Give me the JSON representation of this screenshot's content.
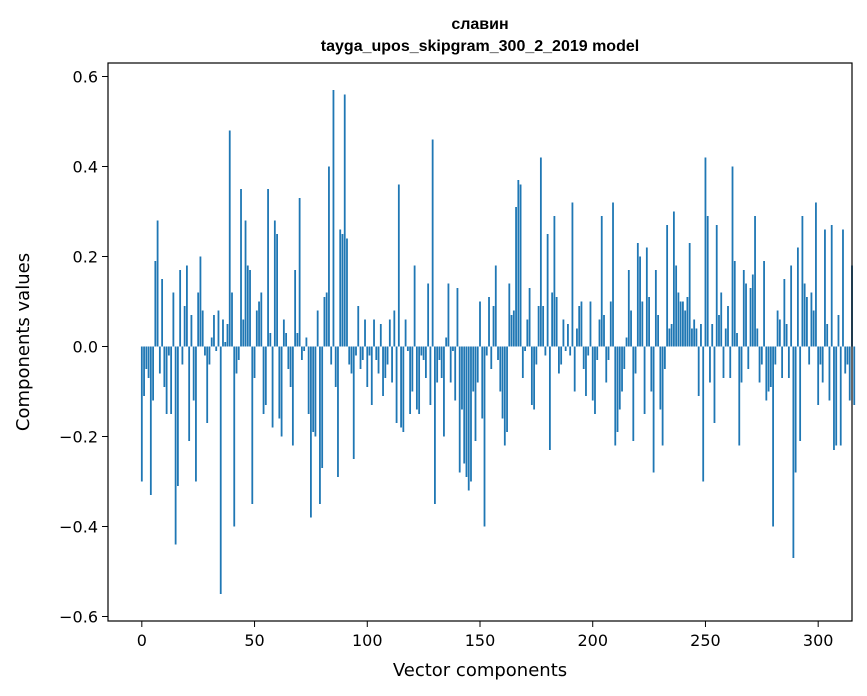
{
  "chart_data": {
    "type": "bar",
    "title": "славин",
    "subtitle": "tayga_upos_skipgram_300_2_2019 model",
    "xlabel": "Vector components",
    "ylabel": "Components values",
    "xlim": [
      -15,
      315
    ],
    "ylim": [
      -0.61,
      0.63
    ],
    "xticks": [
      0,
      50,
      100,
      150,
      200,
      250,
      300
    ],
    "yticks": [
      -0.6,
      -0.4,
      -0.2,
      0.0,
      0.2,
      0.4,
      0.6
    ],
    "ytick_labels": [
      "−0.6",
      "−0.4",
      "−0.2",
      "0.0",
      "0.2",
      "0.4",
      "0.6"
    ],
    "grid": false,
    "bar_color": "#1f77b4",
    "series": [
      {
        "values": [
          -0.3,
          -0.11,
          -0.05,
          -0.07,
          -0.33,
          -0.12,
          0.19,
          0.28,
          -0.06,
          0.15,
          -0.09,
          -0.15,
          -0.02,
          -0.15,
          0.12,
          -0.44,
          -0.31,
          0.17,
          -0.04,
          0.09,
          0.18,
          -0.21,
          0.07,
          -0.12,
          -0.3,
          0.12,
          0.2,
          0.08,
          -0.02,
          -0.17,
          -0.04,
          0.02,
          0.07,
          -0.01,
          0.08,
          -0.55,
          0.06,
          0.01,
          0.05,
          0.48,
          0.12,
          -0.4,
          -0.06,
          -0.03,
          0.35,
          0.06,
          0.28,
          0.18,
          0.17,
          -0.35,
          -0.07,
          0.08,
          0.1,
          0.12,
          -0.15,
          -0.13,
          0.35,
          0.03,
          -0.18,
          0.28,
          0.25,
          -0.16,
          -0.2,
          0.06,
          0.03,
          -0.05,
          -0.09,
          -0.22,
          0.17,
          0.03,
          0.33,
          -0.03,
          -0.01,
          0.02,
          -0.15,
          -0.38,
          -0.19,
          -0.2,
          0.08,
          -0.35,
          -0.27,
          0.11,
          0.12,
          0.4,
          -0.04,
          0.57,
          -0.09,
          -0.29,
          0.26,
          0.25,
          0.56,
          0.24,
          -0.04,
          -0.06,
          -0.25,
          -0.02,
          0.09,
          -0.05,
          -0.03,
          0.06,
          -0.09,
          -0.02,
          -0.13,
          0.06,
          -0.03,
          -0.06,
          0.05,
          -0.11,
          -0.07,
          -0.04,
          0.06,
          -0.08,
          0.08,
          -0.17,
          0.36,
          -0.18,
          -0.19,
          0.06,
          -0.01,
          -0.15,
          -0.1,
          0.18,
          -0.14,
          -0.15,
          -0.02,
          -0.03,
          -0.07,
          0.14,
          -0.13,
          0.46,
          -0.35,
          -0.08,
          -0.03,
          -0.07,
          -0.2,
          0.02,
          0.14,
          -0.08,
          -0.01,
          -0.12,
          0.13,
          -0.28,
          -0.14,
          -0.26,
          -0.29,
          -0.32,
          -0.3,
          -0.1,
          -0.21,
          -0.08,
          0.1,
          -0.16,
          -0.4,
          -0.02,
          0.11,
          -0.05,
          0.09,
          0.18,
          -0.03,
          -0.1,
          -0.16,
          -0.22,
          -0.19,
          0.14,
          0.07,
          0.08,
          0.31,
          0.37,
          0.36,
          -0.07,
          -0.01,
          0.06,
          0.13,
          -0.13,
          -0.14,
          -0.04,
          0.09,
          0.42,
          0.09,
          -0.02,
          0.25,
          -0.23,
          0.12,
          0.29,
          0.11,
          -0.06,
          -0.04,
          0.06,
          -0.01,
          0.05,
          -0.02,
          0.32,
          -0.1,
          0.04,
          0.09,
          0.1,
          -0.05,
          -0.11,
          -0.02,
          0.1,
          -0.12,
          -0.15,
          -0.03,
          0.06,
          0.29,
          0.07,
          -0.08,
          -0.03,
          0.1,
          0.32,
          -0.22,
          -0.19,
          -0.14,
          -0.1,
          -0.05,
          0.02,
          0.17,
          0.08,
          -0.21,
          -0.06,
          0.23,
          0.2,
          0.1,
          -0.15,
          0.22,
          0.11,
          -0.1,
          -0.28,
          0.17,
          0.07,
          -0.14,
          -0.22,
          -0.05,
          0.27,
          0.04,
          0.05,
          0.3,
          0.18,
          0.12,
          0.1,
          0.1,
          0.08,
          0.11,
          0.23,
          0.04,
          0.06,
          0.04,
          -0.11,
          0.05,
          -0.3,
          0.42,
          0.29,
          -0.08,
          0.05,
          -0.17,
          0.27,
          0.07,
          0.12,
          -0.07,
          0.04,
          0.09,
          -0.07,
          0.4,
          0.19,
          0.03,
          -0.22,
          -0.08,
          0.17,
          0.14,
          -0.05,
          0.13,
          0.16,
          0.29,
          0.04,
          -0.08,
          -0.04,
          0.19,
          -0.12,
          -0.1,
          -0.09,
          -0.4,
          -0.04,
          0.08,
          0.06,
          -0.07,
          0.15,
          0.05,
          -0.07,
          0.18,
          -0.47,
          -0.28,
          0.22,
          -0.21,
          0.29,
          0.14,
          0.11,
          -0.04,
          0.12,
          0.08,
          0.32,
          -0.13,
          -0.04,
          -0.08,
          0.26,
          0.05,
          -0.12,
          0.27,
          -0.23,
          -0.22,
          0.07,
          -0.22,
          0.26,
          -0.06,
          -0.04,
          -0.12,
          0.18,
          -0.13
        ]
      }
    ]
  }
}
